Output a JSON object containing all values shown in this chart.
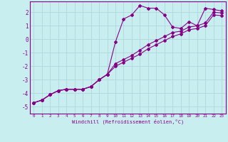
{
  "xlabel": "Windchill (Refroidissement éolien,°C)",
  "background_color": "#c8eef0",
  "grid_color": "#b0d8dc",
  "line_color": "#880088",
  "xlim": [
    -0.5,
    23.5
  ],
  "ylim": [
    -5.5,
    2.8
  ],
  "xticks": [
    0,
    1,
    2,
    3,
    4,
    5,
    6,
    7,
    8,
    9,
    10,
    11,
    12,
    13,
    14,
    15,
    16,
    17,
    18,
    19,
    20,
    21,
    22,
    23
  ],
  "yticks": [
    -5,
    -4,
    -3,
    -2,
    -1,
    0,
    1,
    2
  ],
  "series1_x": [
    0,
    1,
    2,
    3,
    4,
    5,
    6,
    7,
    8,
    9,
    10,
    11,
    12,
    13,
    14,
    15,
    16,
    17,
    18,
    19,
    20,
    21,
    22,
    23
  ],
  "series1_y": [
    -4.7,
    -4.5,
    -4.1,
    -3.8,
    -3.7,
    -3.7,
    -3.7,
    -3.5,
    -3.0,
    -2.6,
    -0.2,
    1.5,
    1.8,
    2.5,
    2.3,
    2.3,
    1.8,
    0.9,
    0.8,
    1.3,
    1.0,
    2.3,
    2.2,
    2.1
  ],
  "series2_x": [
    0,
    1,
    2,
    3,
    4,
    5,
    6,
    7,
    8,
    9,
    10,
    11,
    12,
    13,
    14,
    15,
    16,
    17,
    18,
    19,
    20,
    21,
    22,
    23
  ],
  "series2_y": [
    -4.7,
    -4.5,
    -4.1,
    -3.8,
    -3.7,
    -3.7,
    -3.7,
    -3.5,
    -3.0,
    -2.6,
    -1.8,
    -1.5,
    -1.2,
    -0.8,
    -0.4,
    -0.1,
    0.2,
    0.5,
    0.6,
    0.9,
    1.0,
    1.2,
    2.0,
    1.95
  ],
  "series3_x": [
    0,
    1,
    2,
    3,
    4,
    5,
    6,
    7,
    8,
    9,
    10,
    11,
    12,
    13,
    14,
    15,
    16,
    17,
    18,
    19,
    20,
    21,
    22,
    23
  ],
  "series3_y": [
    -4.7,
    -4.5,
    -4.1,
    -3.8,
    -3.7,
    -3.7,
    -3.7,
    -3.5,
    -3.0,
    -2.6,
    -2.0,
    -1.7,
    -1.4,
    -1.1,
    -0.7,
    -0.4,
    -0.1,
    0.2,
    0.4,
    0.7,
    0.8,
    1.0,
    1.8,
    1.75
  ]
}
